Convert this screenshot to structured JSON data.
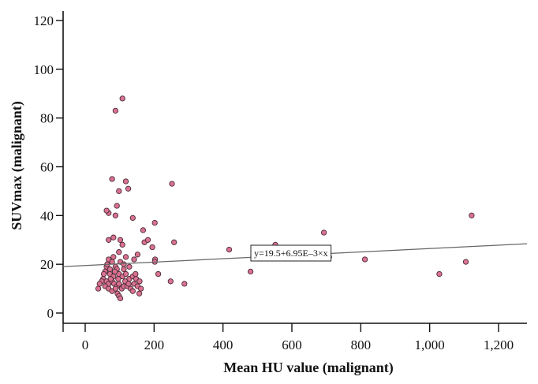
{
  "chart_data": {
    "type": "scatter",
    "title": "",
    "xlabel": "Mean HU value (malignant)",
    "ylabel": "SUVmax (malignant)",
    "xlim": [
      -60,
      1260
    ],
    "ylim": [
      -4,
      122
    ],
    "xticks": [
      0,
      200,
      400,
      600,
      800,
      1000,
      1200
    ],
    "xtick_labels": [
      "0",
      "200",
      "400",
      "600",
      "800",
      "1,000",
      "1,200"
    ],
    "yticks": [
      0,
      20,
      40,
      60,
      80,
      100,
      120
    ],
    "ytick_labels": [
      "0",
      "20",
      "40",
      "60",
      "80",
      "100",
      "120"
    ],
    "grid": false,
    "marker_color": "#d9728f",
    "fit": {
      "intercept": 19.5,
      "slope": 0.00695,
      "label": "y=19.5+6.95E–3×x"
    },
    "points": [
      [
        88,
        83
      ],
      [
        108,
        88
      ],
      [
        78,
        55
      ],
      [
        118,
        54
      ],
      [
        125,
        51
      ],
      [
        98,
        50
      ],
      [
        252,
        53
      ],
      [
        92,
        44
      ],
      [
        68,
        41
      ],
      [
        62,
        42
      ],
      [
        88,
        40
      ],
      [
        138,
        39
      ],
      [
        202,
        37
      ],
      [
        168,
        34
      ],
      [
        1122,
        40
      ],
      [
        172,
        29
      ],
      [
        258,
        29
      ],
      [
        102,
        30
      ],
      [
        108,
        28
      ],
      [
        182,
        30
      ],
      [
        195,
        27
      ],
      [
        693,
        33
      ],
      [
        552,
        28
      ],
      [
        418,
        26
      ],
      [
        68,
        30
      ],
      [
        82,
        31
      ],
      [
        98,
        25
      ],
      [
        152,
        24
      ],
      [
        118,
        23
      ],
      [
        142,
        22
      ],
      [
        203,
        22
      ],
      [
        202,
        21
      ],
      [
        708,
        23
      ],
      [
        812,
        22
      ],
      [
        1105,
        21
      ],
      [
        68,
        22
      ],
      [
        78,
        21
      ],
      [
        88,
        19
      ],
      [
        102,
        21
      ],
      [
        112,
        20
      ],
      [
        128,
        19
      ],
      [
        92,
        18
      ],
      [
        62,
        19
      ],
      [
        58,
        17
      ],
      [
        72,
        16
      ],
      [
        82,
        15
      ],
      [
        98,
        16
      ],
      [
        108,
        15
      ],
      [
        118,
        16
      ],
      [
        128,
        14
      ],
      [
        138,
        15
      ],
      [
        148,
        14
      ],
      [
        158,
        13
      ],
      [
        52,
        14
      ],
      [
        48,
        13
      ],
      [
        42,
        12
      ],
      [
        62,
        13
      ],
      [
        68,
        12
      ],
      [
        78,
        13
      ],
      [
        84,
        12
      ],
      [
        92,
        11
      ],
      [
        98,
        12
      ],
      [
        106,
        10
      ],
      [
        112,
        11
      ],
      [
        122,
        11
      ],
      [
        132,
        10
      ],
      [
        142,
        12
      ],
      [
        152,
        11
      ],
      [
        162,
        10
      ],
      [
        58,
        11
      ],
      [
        68,
        10
      ],
      [
        78,
        9
      ],
      [
        88,
        10
      ],
      [
        94,
        8
      ],
      [
        98,
        7
      ],
      [
        102,
        6
      ],
      [
        138,
        9
      ],
      [
        157,
        8
      ],
      [
        212,
        16
      ],
      [
        248,
        13
      ],
      [
        288,
        12
      ],
      [
        480,
        17
      ],
      [
        1028,
        16
      ],
      [
        38,
        10
      ],
      [
        72,
        18
      ],
      [
        86,
        17
      ],
      [
        96,
        14
      ],
      [
        116,
        13
      ],
      [
        126,
        12
      ],
      [
        146,
        16
      ],
      [
        64,
        20
      ],
      [
        82,
        23
      ],
      [
        74,
        14
      ],
      [
        54,
        16
      ],
      [
        112,
        18
      ]
    ]
  }
}
